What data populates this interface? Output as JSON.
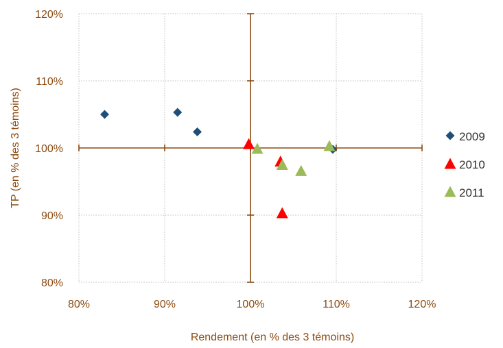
{
  "chart_data": {
    "type": "scatter",
    "xlabel": "Rendement (en % des 3 témoins)",
    "ylabel": "TP (en % des 3 témoins)",
    "xlim": [
      80,
      120
    ],
    "ylim": [
      80,
      120
    ],
    "x_ticks": [
      {
        "value": 80,
        "label": "80%"
      },
      {
        "value": 90,
        "label": "90%"
      },
      {
        "value": 100,
        "label": "100%"
      },
      {
        "value": 110,
        "label": "110%"
      },
      {
        "value": 120,
        "label": "120%"
      }
    ],
    "y_ticks": [
      {
        "value": 80,
        "label": "80%"
      },
      {
        "value": 90,
        "label": "90%"
      },
      {
        "value": 100,
        "label": "100%"
      },
      {
        "value": 110,
        "label": "110%"
      },
      {
        "value": 120,
        "label": "120%"
      }
    ],
    "grid": true,
    "reference_lines": {
      "x": 100,
      "y": 100,
      "color": "#8b4a10"
    },
    "legend": "right",
    "series": [
      {
        "name": "2009",
        "marker": "diamond",
        "color": "#1f4e79",
        "points": [
          {
            "x": 83.0,
            "y": 105.0
          },
          {
            "x": 91.5,
            "y": 105.3
          },
          {
            "x": 93.8,
            "y": 102.4
          },
          {
            "x": 109.6,
            "y": 99.8
          }
        ]
      },
      {
        "name": "2010",
        "marker": "triangle",
        "color": "#ff0000",
        "points": [
          {
            "x": 99.8,
            "y": 100.6
          },
          {
            "x": 103.5,
            "y": 98.0
          },
          {
            "x": 103.7,
            "y": 90.3
          }
        ]
      },
      {
        "name": "2011",
        "marker": "triangle",
        "color": "#9bbb59",
        "points": [
          {
            "x": 100.8,
            "y": 99.9
          },
          {
            "x": 103.7,
            "y": 97.5
          },
          {
            "x": 105.9,
            "y": 96.6
          },
          {
            "x": 109.2,
            "y": 100.3
          }
        ]
      }
    ]
  }
}
